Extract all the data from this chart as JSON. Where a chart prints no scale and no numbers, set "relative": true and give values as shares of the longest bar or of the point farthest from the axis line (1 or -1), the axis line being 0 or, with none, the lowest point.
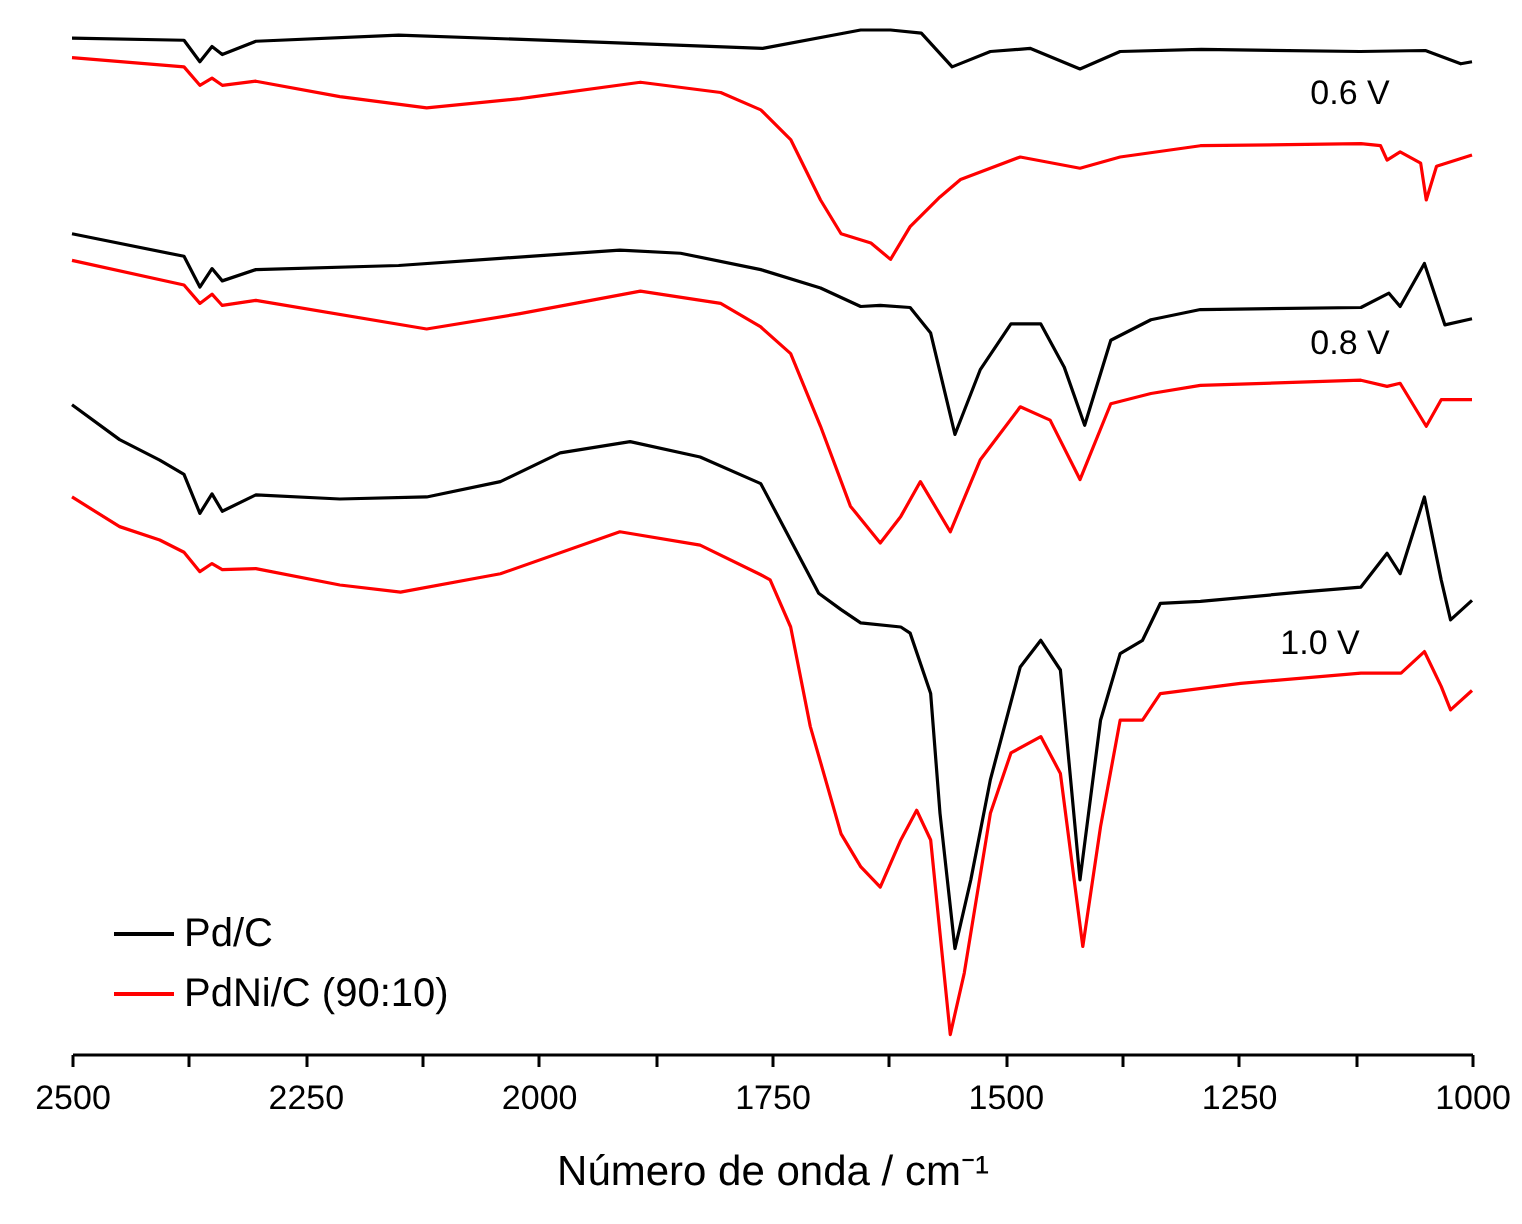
{
  "chart_data": {
    "type": "line",
    "relative": true,
    "xlabel": "Número de onda / cm⁻¹",
    "xlim": [
      2500,
      1000
    ],
    "xticks": [
      2500,
      {
        "value": 2375,
        "label": null
      },
      2250,
      {
        "value": 2125,
        "label": null
      },
      2000,
      {
        "value": 1875,
        "label": null
      },
      1750,
      {
        "value": 1625,
        "label": null
      },
      1500,
      {
        "value": 1375,
        "label": null
      },
      1250,
      {
        "value": 1125,
        "label": null
      },
      1000
    ],
    "grid": false,
    "legend": "bottom left",
    "line_style": "solid",
    "marker": "none",
    "annotations": [
      "0.6 V",
      "0.8 V",
      "1.0 V"
    ],
    "series": [
      {
        "name": "Pd/C",
        "color": "#000000",
        "x": [
          2500,
          2380,
          2363,
          2350,
          2339,
          2303,
          2150,
          1930,
          1760,
          1655,
          1623,
          1590,
          1557,
          1516,
          1473,
          1420,
          1377,
          1290,
          1120,
          1050,
          1012,
          1000
        ],
        "values": [
          0.992,
          0.99,
          0.969,
          0.984,
          0.976,
          0.989,
          0.995,
          0.988,
          0.982,
          1.0,
          1.0,
          0.997,
          0.964,
          0.979,
          0.982,
          0.962,
          0.979,
          0.981,
          0.979,
          0.98,
          0.967,
          0.969
        ]
      },
      {
        "name": "PdNi/C (90:10)",
        "color": "#ff0000",
        "x": [
          2500,
          2380,
          2363,
          2350,
          2339,
          2303,
          2213,
          2120,
          2020,
          1891,
          1805,
          1762,
          1730,
          1698,
          1676,
          1644,
          1623,
          1602,
          1570,
          1548,
          1484,
          1420,
          1377,
          1291,
          1119,
          1098,
          1091,
          1077,
          1055,
          1049,
          1038,
          1000
        ],
        "values": [
          0.973,
          0.964,
          0.946,
          0.953,
          0.946,
          0.95,
          0.935,
          0.924,
          0.933,
          0.949,
          0.939,
          0.922,
          0.893,
          0.834,
          0.801,
          0.792,
          0.776,
          0.808,
          0.837,
          0.854,
          0.876,
          0.865,
          0.876,
          0.887,
          0.889,
          0.887,
          0.873,
          0.881,
          0.87,
          0.834,
          0.867,
          0.878
        ]
      },
      {
        "color": "#000000",
        "x": [
          2500,
          2380,
          2363,
          2350,
          2339,
          2303,
          2150,
          2041,
          1913,
          1848,
          1762,
          1698,
          1655,
          1634,
          1602,
          1580,
          1554,
          1527,
          1494,
          1462,
          1437,
          1415,
          1387,
          1344,
          1291,
          1119,
          1089,
          1077,
          1051,
          1029,
          1000
        ],
        "values": [
          0.801,
          0.779,
          0.749,
          0.767,
          0.755,
          0.766,
          0.77,
          0.777,
          0.785,
          0.782,
          0.766,
          0.748,
          0.73,
          0.731,
          0.729,
          0.704,
          0.605,
          0.668,
          0.713,
          0.713,
          0.671,
          0.614,
          0.697,
          0.717,
          0.727,
          0.729,
          0.743,
          0.73,
          0.772,
          0.712,
          0.718
        ]
      },
      {
        "color": "#ff0000",
        "x": [
          2500,
          2380,
          2363,
          2350,
          2339,
          2303,
          2120,
          2020,
          1891,
          1805,
          1762,
          1730,
          1698,
          1666,
          1634,
          1612,
          1591,
          1559,
          1527,
          1484,
          1452,
          1420,
          1387,
          1344,
          1291,
          1119,
          1091,
          1077,
          1049,
          1033,
          1000
        ],
        "values": [
          0.775,
          0.751,
          0.733,
          0.742,
          0.731,
          0.736,
          0.708,
          0.723,
          0.745,
          0.733,
          0.71,
          0.684,
          0.613,
          0.535,
          0.499,
          0.525,
          0.559,
          0.51,
          0.58,
          0.632,
          0.619,
          0.561,
          0.635,
          0.645,
          0.653,
          0.658,
          0.652,
          0.655,
          0.613,
          0.639,
          0.639
        ]
      },
      {
        "color": "#000000",
        "x": [
          2500,
          2449,
          2406,
          2380,
          2363,
          2350,
          2339,
          2303,
          2213,
          2120,
          2041,
          1977,
          1902,
          1827,
          1762,
          1700,
          1676,
          1655,
          1612,
          1602,
          1580,
          1570,
          1554,
          1537,
          1516,
          1484,
          1462,
          1441,
          1420,
          1398,
          1377,
          1353,
          1334,
          1291,
          1184,
          1119,
          1091,
          1077,
          1051,
          1033,
          1023,
          1000
        ],
        "values": [
          0.634,
          0.6,
          0.58,
          0.566,
          0.528,
          0.547,
          0.53,
          0.546,
          0.542,
          0.544,
          0.559,
          0.587,
          0.598,
          0.583,
          0.557,
          0.45,
          0.434,
          0.421,
          0.417,
          0.411,
          0.352,
          0.235,
          0.103,
          0.17,
          0.268,
          0.378,
          0.404,
          0.375,
          0.17,
          0.326,
          0.391,
          0.404,
          0.44,
          0.442,
          0.451,
          0.456,
          0.489,
          0.469,
          0.544,
          0.463,
          0.424,
          0.443
        ]
      },
      {
        "color": "#ff0000",
        "x": [
          2500,
          2449,
          2406,
          2380,
          2363,
          2350,
          2339,
          2303,
          2213,
          2148,
          2041,
          1913,
          1827,
          1762,
          1752,
          1730,
          1709,
          1676,
          1655,
          1634,
          1612,
          1595,
          1580,
          1570,
          1559,
          1544,
          1516,
          1494,
          1462,
          1441,
          1417,
          1398,
          1377,
          1353,
          1334,
          1248,
          1119,
          1076,
          1051,
          1033,
          1023,
          1000
        ],
        "values": [
          0.544,
          0.515,
          0.502,
          0.49,
          0.471,
          0.479,
          0.473,
          0.474,
          0.458,
          0.451,
          0.469,
          0.51,
          0.497,
          0.468,
          0.463,
          0.417,
          0.32,
          0.215,
          0.183,
          0.163,
          0.209,
          0.238,
          0.209,
          0.118,
          0.019,
          0.079,
          0.235,
          0.294,
          0.31,
          0.274,
          0.105,
          0.222,
          0.326,
          0.326,
          0.352,
          0.362,
          0.372,
          0.372,
          0.393,
          0.359,
          0.336,
          0.355
        ]
      }
    ]
  }
}
